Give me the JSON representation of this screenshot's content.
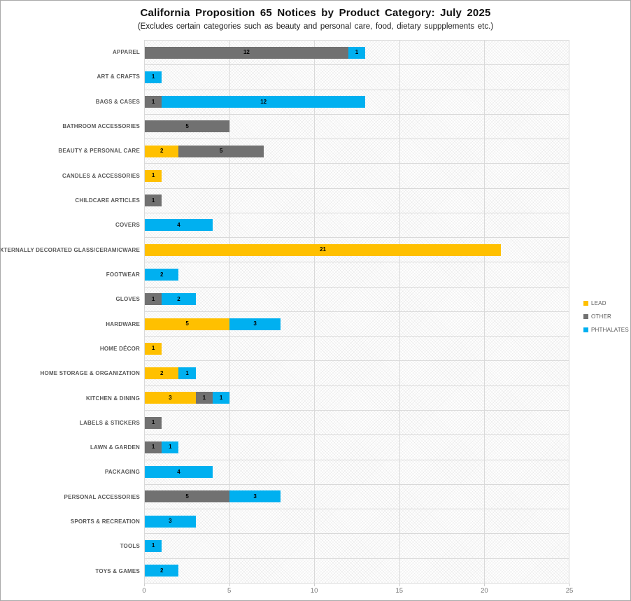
{
  "title": "California Proposition 65 Notices by Product Category: July 2025",
  "subtitle": "(Excludes certain categories such as beauty and personal care, food, dietary suppplements etc.)",
  "chart_data": {
    "type": "bar",
    "orientation": "horizontal",
    "stacked": true,
    "title": "California Proposition 65 Notices by Product Category: July 2025",
    "subtitle": "(Excludes certain categories such as beauty and personal care, food, dietary suppplements etc.)",
    "xlabel": "",
    "ylabel": "",
    "xlim": [
      0,
      25
    ],
    "x_ticks": [
      0,
      5,
      10,
      15,
      20,
      25
    ],
    "grid": "both",
    "legend_position": "right",
    "value_labels": true,
    "categories": [
      "APPAREL",
      "ART & CRAFTS",
      "BAGS & CASES",
      "BATHROOM ACCESSORIES",
      "BEAUTY & PERSONAL CARE",
      "CANDLES & ACCESSORIES",
      "CHILDCARE ARTICLES",
      "COVERS",
      "EXTERNALLY DECORATED GLASS/CERAMICWARE",
      "FOOTWEAR",
      "GLOVES",
      "HARDWARE",
      "HOME DÉCOR",
      "HOME STORAGE & ORGANIZATION",
      "KITCHEN & DINING",
      "LABELS & STICKERS",
      "LAWN & GARDEN",
      "PACKAGING",
      "PERSONAL ACCESSORIES",
      "SPORTS & RECREATION",
      "TOOLS",
      "TOYS & GAMES"
    ],
    "series": [
      {
        "name": "LEAD",
        "color": "#FFC000",
        "values": [
          0,
          0,
          0,
          0,
          2,
          1,
          0,
          0,
          21,
          0,
          0,
          5,
          1,
          2,
          3,
          0,
          0,
          0,
          0,
          0,
          0,
          0
        ]
      },
      {
        "name": "OTHER",
        "color": "#717171",
        "values": [
          12,
          0,
          1,
          5,
          5,
          0,
          1,
          0,
          0,
          0,
          1,
          0,
          0,
          0,
          1,
          1,
          1,
          0,
          5,
          0,
          0,
          0
        ]
      },
      {
        "name": "PHTHALATES",
        "color": "#00B0F0",
        "values": [
          1,
          1,
          12,
          0,
          0,
          0,
          0,
          4,
          0,
          2,
          2,
          3,
          0,
          1,
          1,
          0,
          1,
          4,
          3,
          3,
          1,
          2
        ]
      }
    ]
  },
  "colors": {
    "lead": "#FFC000",
    "other": "#717171",
    "phthalates": "#00B0F0",
    "gridline": "#d9d9d9",
    "axis_text": "#737373",
    "category_text": "#595959"
  }
}
